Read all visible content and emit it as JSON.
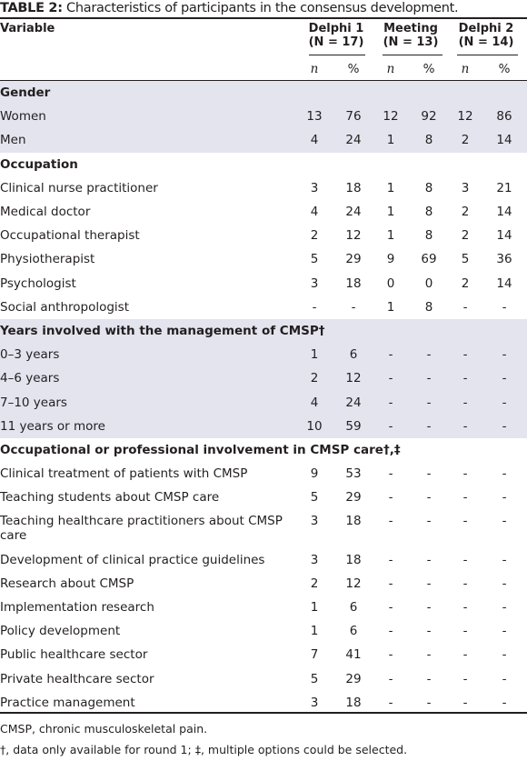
{
  "table_title_prefix": "TABLE 2:",
  "table_title_text": "Characteristics of participants in the consensus development.",
  "columns": {
    "variable": "Variable",
    "delphi1": {
      "name": "Delphi 1",
      "n_label": "(N = 17)"
    },
    "meeting": {
      "name": "Meeting",
      "n_label": "(N = 13)"
    },
    "delphi2": {
      "name": "Delphi 2",
      "n_label": "(N = 14)"
    },
    "sub": [
      "n",
      "%",
      "n",
      "%",
      "n",
      "%"
    ]
  },
  "rows": [
    {
      "type": "section",
      "label": "Gender"
    },
    {
      "type": "data",
      "label": "Women",
      "values": [
        "13",
        "76",
        "12",
        "92",
        "12",
        "86"
      ]
    },
    {
      "type": "data",
      "label": "Men",
      "values": [
        "4",
        "24",
        "1",
        "8",
        "2",
        "14"
      ]
    },
    {
      "type": "section",
      "label": "Occupation"
    },
    {
      "type": "data",
      "label": "Clinical nurse practitioner",
      "values": [
        "3",
        "18",
        "1",
        "8",
        "3",
        "21"
      ]
    },
    {
      "type": "data",
      "label": "Medical doctor",
      "values": [
        "4",
        "24",
        "1",
        "8",
        "2",
        "14"
      ]
    },
    {
      "type": "data",
      "label": "Occupational therapist",
      "values": [
        "2",
        "12",
        "1",
        "8",
        "2",
        "14"
      ]
    },
    {
      "type": "data",
      "label": "Physiotherapist",
      "values": [
        "5",
        "29",
        "9",
        "69",
        "5",
        "36"
      ]
    },
    {
      "type": "data",
      "label": "Psychologist",
      "values": [
        "3",
        "18",
        "0",
        "0",
        "2",
        "14"
      ]
    },
    {
      "type": "data",
      "label": "Social anthropologist",
      "values": [
        "-",
        "-",
        "1",
        "8",
        "-",
        "-"
      ]
    },
    {
      "type": "section",
      "label": "Years involved with the management of CMSP†"
    },
    {
      "type": "data",
      "label": "0–3 years",
      "values": [
        "1",
        "6",
        "-",
        "-",
        "-",
        "-"
      ]
    },
    {
      "type": "data",
      "label": "4–6 years",
      "values": [
        "2",
        "12",
        "-",
        "-",
        "-",
        "-"
      ]
    },
    {
      "type": "data",
      "label": "7–10 years",
      "values": [
        "4",
        "24",
        "-",
        "-",
        "-",
        "-"
      ]
    },
    {
      "type": "data",
      "label": "11 years or more",
      "values": [
        "10",
        "59",
        "-",
        "-",
        "-",
        "-"
      ]
    },
    {
      "type": "section",
      "label": "Occupational or professional involvement in CMSP care†,‡"
    },
    {
      "type": "data",
      "label": "Clinical treatment of patients with CMSP",
      "values": [
        "9",
        "53",
        "-",
        "-",
        "-",
        "-"
      ]
    },
    {
      "type": "data",
      "label": "Teaching students about CMSP care",
      "values": [
        "5",
        "29",
        "-",
        "-",
        "-",
        "-"
      ]
    },
    {
      "type": "data",
      "label": "Teaching healthcare practitioners about CMSP care",
      "values": [
        "3",
        "18",
        "-",
        "-",
        "-",
        "-"
      ],
      "wrap": true
    },
    {
      "type": "data",
      "label": "Development of clinical practice guidelines",
      "values": [
        "3",
        "18",
        "-",
        "-",
        "-",
        "-"
      ]
    },
    {
      "type": "data",
      "label": "Research about CMSP",
      "values": [
        "2",
        "12",
        "-",
        "-",
        "-",
        "-"
      ]
    },
    {
      "type": "data",
      "label": "Implementation research",
      "values": [
        "1",
        "6",
        "-",
        "-",
        "-",
        "-"
      ]
    },
    {
      "type": "data",
      "label": "Policy development",
      "values": [
        "1",
        "6",
        "-",
        "-",
        "-",
        "-"
      ]
    },
    {
      "type": "data",
      "label": "Public healthcare sector",
      "values": [
        "7",
        "41",
        "-",
        "-",
        "-",
        "-"
      ]
    },
    {
      "type": "data",
      "label": "Private healthcare sector",
      "values": [
        "5",
        "29",
        "-",
        "-",
        "-",
        "-"
      ]
    },
    {
      "type": "data",
      "label": "Practice management",
      "values": [
        "3",
        "18",
        "-",
        "-",
        "-",
        "-"
      ]
    }
  ],
  "footnotes": [
    "CMSP, chronic musculoskeletal pain.",
    "†, data only available for round 1; ‡, multiple options could be selected."
  ],
  "colors": {
    "shade": "#e3e4ee",
    "text": "#231f20"
  }
}
